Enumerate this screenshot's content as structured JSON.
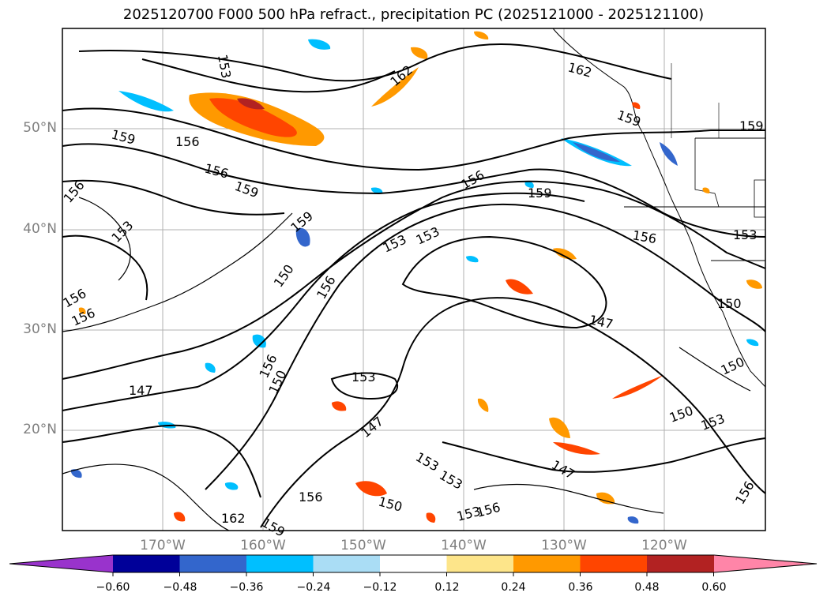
{
  "title": "2025120700 F000 500 hPa refract., precipitation PC (2025121000 - 2025121100)",
  "map": {
    "lat_labels": [
      "50°N",
      "40°N",
      "30°N",
      "20°N"
    ],
    "lon_labels": [
      "170°W",
      "160°W",
      "150°W",
      "140°W",
      "130°W",
      "120°W"
    ],
    "contour_labels": [
      "153",
      "162",
      "162",
      "159",
      "159",
      "159",
      "156",
      "156",
      "159",
      "156",
      "156",
      "156",
      "159",
      "153",
      "159",
      "153",
      "156",
      "153",
      "153",
      "156",
      "150",
      "156",
      "147",
      "150",
      "156",
      "150",
      "153",
      "147",
      "147",
      "153",
      "153",
      "150",
      "150",
      "147",
      "150",
      "153",
      "162",
      "159",
      "156",
      "156",
      "153",
      "156"
    ]
  },
  "colorbar": {
    "ticks": [
      "−0.60",
      "−0.48",
      "−0.36",
      "−0.24",
      "−0.12",
      "0.12",
      "0.24",
      "0.36",
      "0.48",
      "0.60"
    ],
    "colors": [
      "#9933cc",
      "#000099",
      "#3366cc",
      "#00bfff",
      "#aaddf5",
      "#ffffff",
      "#fde58a",
      "#ff9900",
      "#ff4500",
      "#b22222",
      "#ff85a8"
    ]
  }
}
